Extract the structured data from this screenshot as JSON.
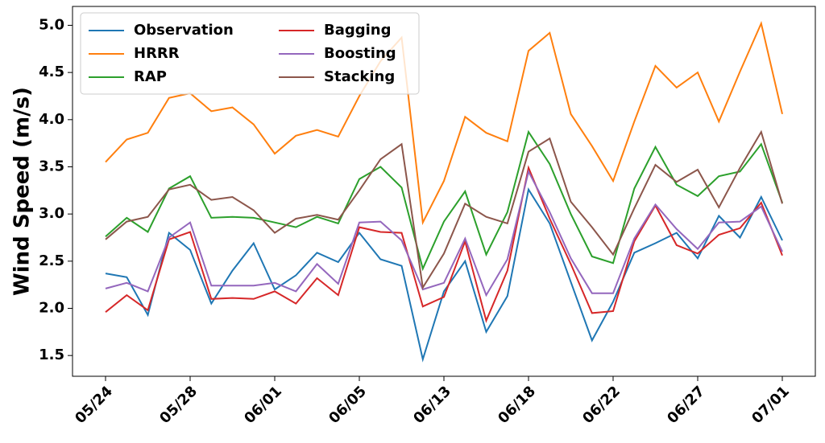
{
  "chart_data": {
    "type": "line",
    "y_label": "Wind Speed (m/s)",
    "categories": [
      "05/24",
      null,
      null,
      null,
      "05/28",
      null,
      null,
      null,
      "06/01",
      null,
      null,
      null,
      "06/05",
      null,
      null,
      null,
      "06/13",
      null,
      null,
      null,
      "06/18",
      null,
      null,
      null,
      "06/22",
      null,
      null,
      null,
      "06/27",
      null,
      null,
      null,
      "07/01"
    ],
    "series": [
      {
        "name": "Observation",
        "color": "#1f77b4",
        "values": [
          2.37,
          2.33,
          1.93,
          2.8,
          2.62,
          2.05,
          2.4,
          2.69,
          2.2,
          2.35,
          2.59,
          2.49,
          2.8,
          2.52,
          2.45,
          1.46,
          2.18,
          2.5,
          1.75,
          2.13,
          3.26,
          2.9,
          2.28,
          1.66,
          2.07,
          2.59,
          2.69,
          2.8,
          2.53,
          2.98,
          2.75,
          3.18,
          2.72
        ]
      },
      {
        "name": "HRRR",
        "color": "#ff7f0e",
        "values": [
          3.55,
          3.79,
          3.86,
          4.23,
          4.28,
          4.09,
          4.13,
          3.95,
          3.64,
          3.83,
          3.89,
          3.82,
          4.25,
          4.62,
          4.87,
          2.91,
          3.35,
          4.03,
          3.86,
          3.77,
          4.73,
          4.92,
          4.06,
          3.72,
          3.35,
          3.98,
          4.57,
          4.34,
          4.5,
          3.98,
          4.51,
          5.02,
          4.06
        ]
      },
      {
        "name": "RAP",
        "color": "#2ca02c",
        "values": [
          2.76,
          2.96,
          2.81,
          3.27,
          3.4,
          2.96,
          2.97,
          2.96,
          2.91,
          2.86,
          2.97,
          2.9,
          3.37,
          3.5,
          3.28,
          2.42,
          2.92,
          3.24,
          2.57,
          3.02,
          3.87,
          3.53,
          3.0,
          2.55,
          2.48,
          3.27,
          3.71,
          3.31,
          3.19,
          3.4,
          3.45,
          3.74,
          3.12
        ]
      },
      {
        "name": "Bagging",
        "color": "#d62728",
        "values": [
          1.96,
          2.14,
          1.98,
          2.73,
          2.81,
          2.1,
          2.11,
          2.1,
          2.18,
          2.05,
          2.32,
          2.14,
          2.86,
          2.81,
          2.8,
          2.02,
          2.12,
          2.71,
          1.87,
          2.4,
          3.49,
          2.95,
          2.47,
          1.95,
          1.97,
          2.71,
          3.09,
          2.67,
          2.58,
          2.78,
          2.85,
          3.12,
          2.56
        ]
      },
      {
        "name": "Boosting",
        "color": "#9467bd",
        "values": [
          2.21,
          2.27,
          2.18,
          2.75,
          2.91,
          2.24,
          2.24,
          2.24,
          2.27,
          2.18,
          2.47,
          2.26,
          2.91,
          2.92,
          2.72,
          2.2,
          2.27,
          2.74,
          2.14,
          2.52,
          3.45,
          3.02,
          2.53,
          2.16,
          2.16,
          2.74,
          3.1,
          2.84,
          2.63,
          2.91,
          2.92,
          3.08,
          2.6
        ]
      },
      {
        "name": "Stacking",
        "color": "#8c564b",
        "values": [
          2.73,
          2.92,
          2.97,
          3.26,
          3.31,
          3.15,
          3.18,
          3.04,
          2.8,
          2.95,
          2.99,
          2.94,
          3.25,
          3.58,
          3.74,
          2.22,
          2.58,
          3.11,
          2.97,
          2.9,
          3.66,
          3.8,
          3.13,
          2.86,
          2.57,
          3.06,
          3.52,
          3.34,
          3.47,
          3.07,
          3.49,
          3.87,
          3.11
        ]
      }
    ],
    "ylim": [
      1.28,
      5.2
    ],
    "yticks": [
      1.5,
      {
        "value": 2,
        "label": "2.0"
      },
      2.5,
      {
        "value": 3,
        "label": "3.0"
      },
      3.5,
      {
        "value": 4,
        "label": "4.0"
      },
      4.5,
      {
        "value": 5,
        "label": "5.0"
      }
    ],
    "grid": false,
    "legend": "upper left",
    "legend_columns": 2
  }
}
